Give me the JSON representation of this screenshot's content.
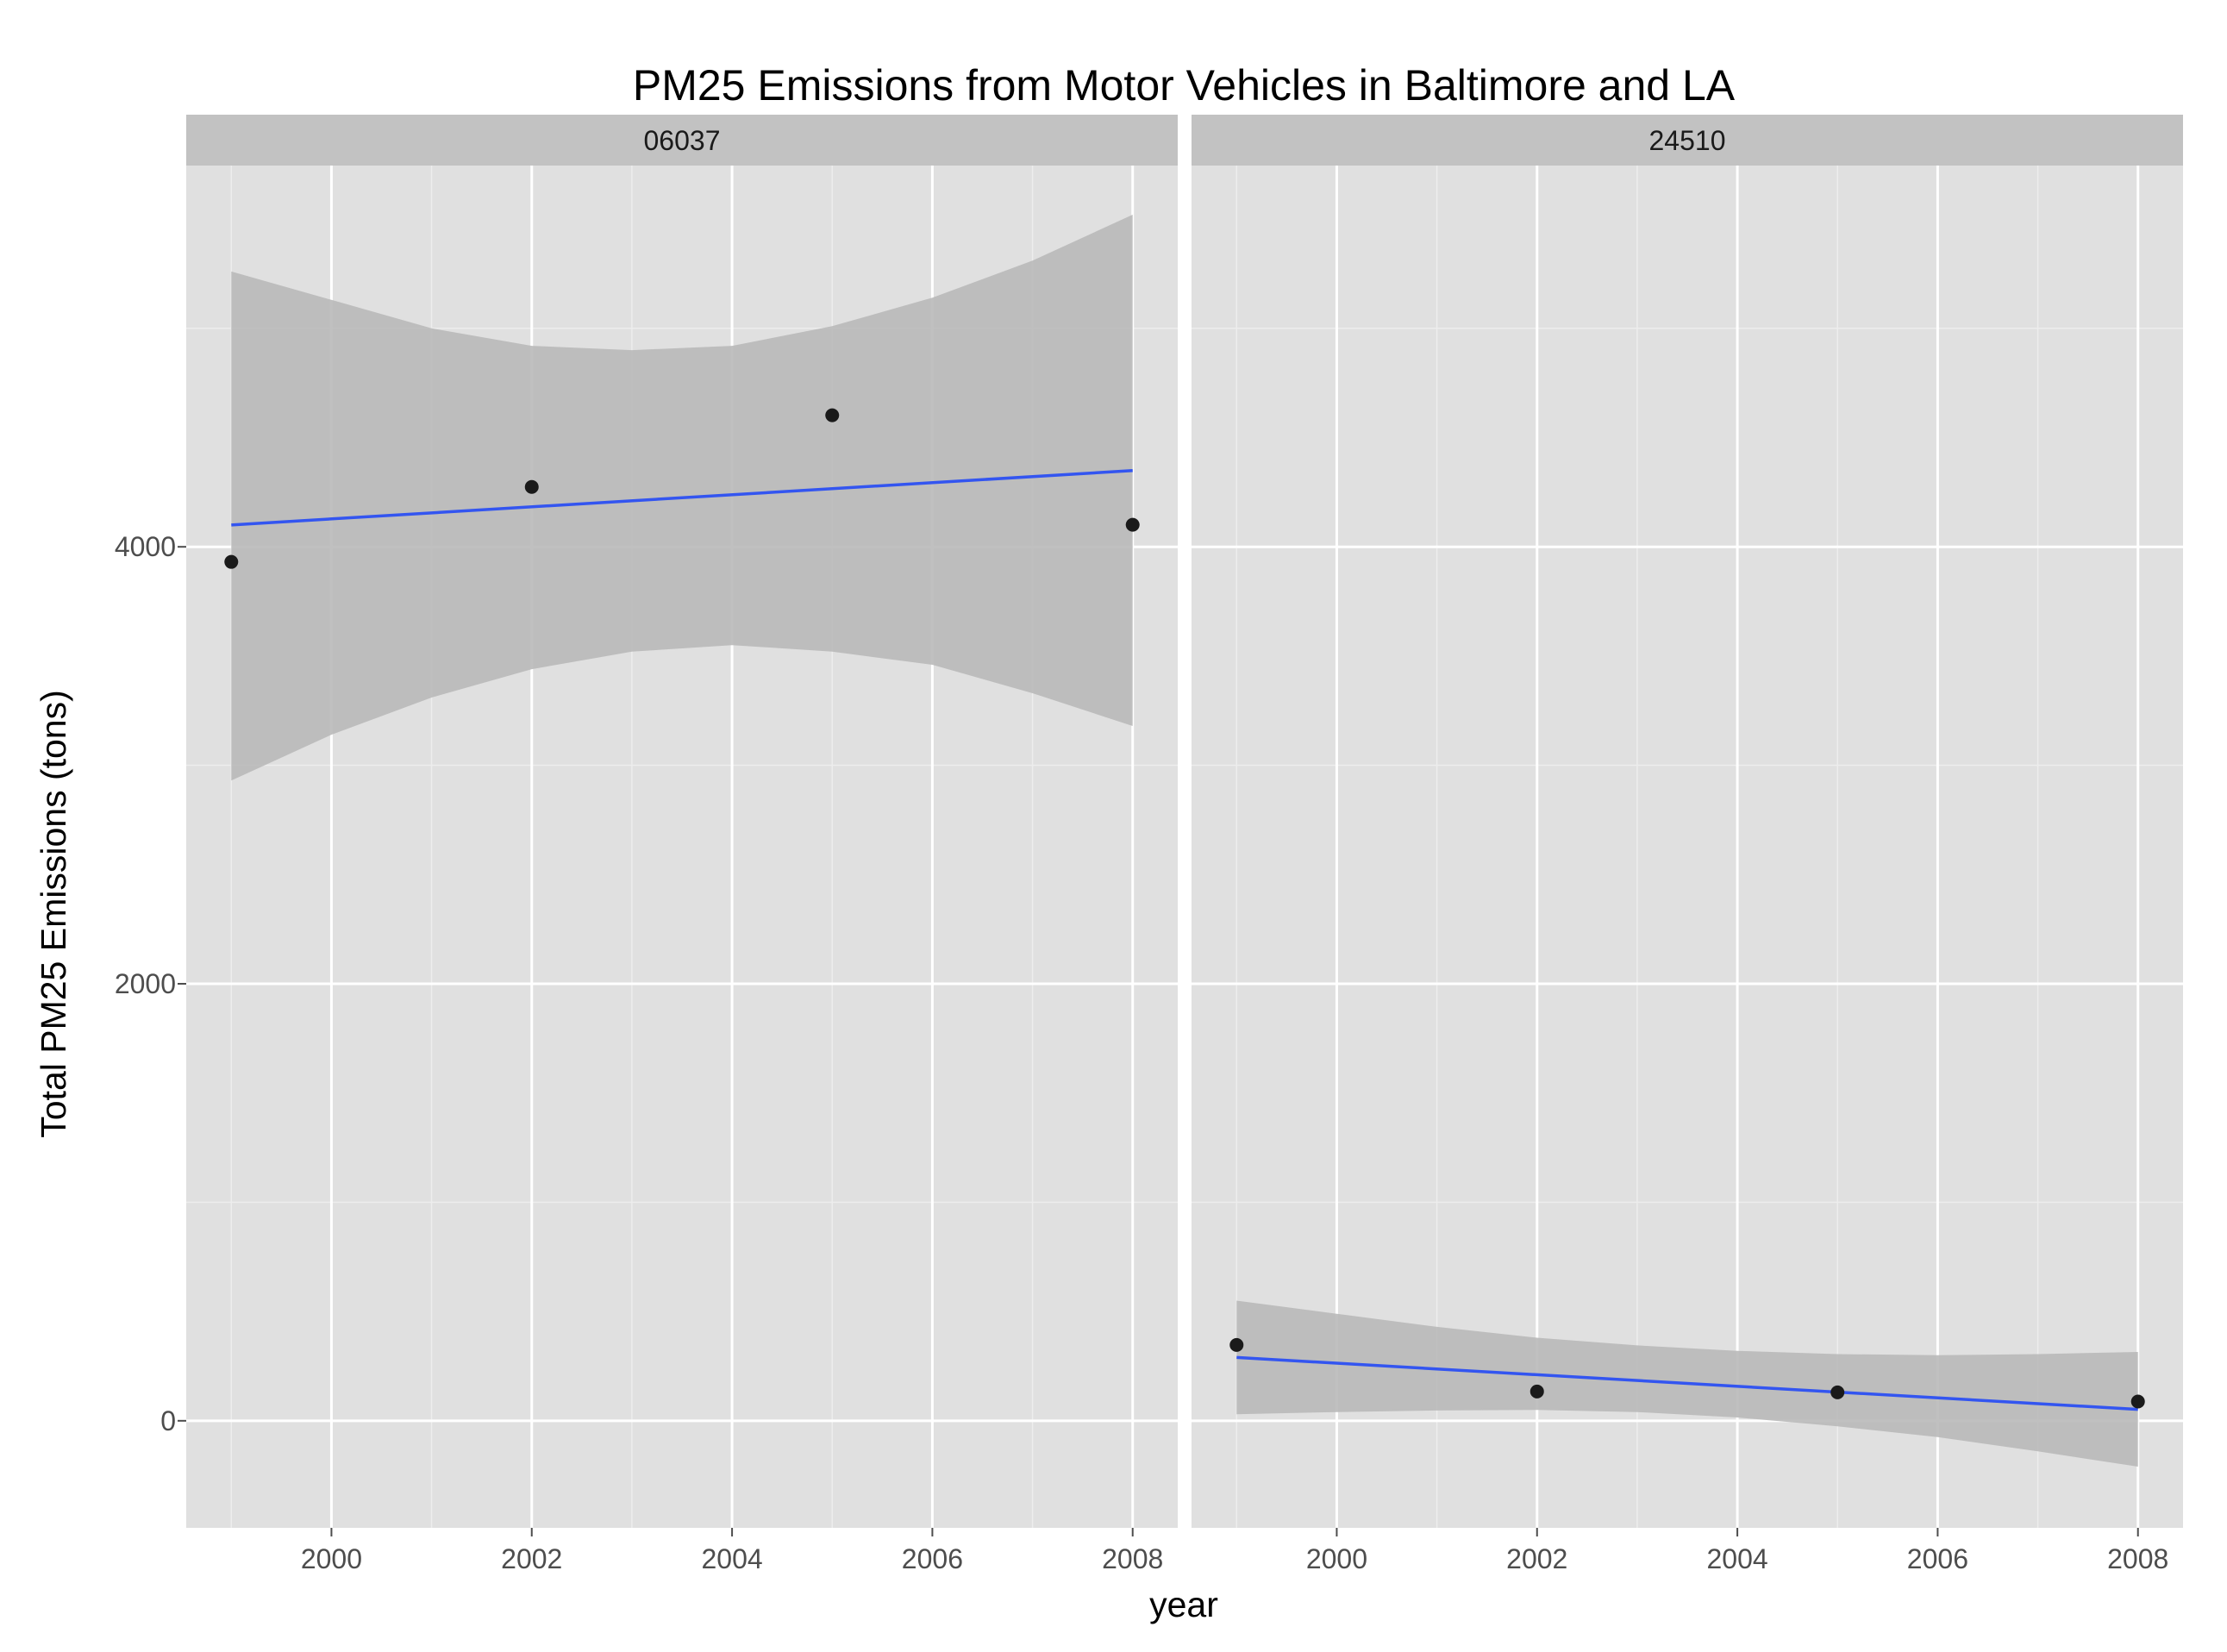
{
  "chart_data": {
    "type": "scatter",
    "title": "PM25 Emissions from Motor Vehicles in Baltimore and LA",
    "xlabel": "year",
    "ylabel": "Total PM25 Emissions (tons)",
    "xlim": [
      1998.55,
      2008.45
    ],
    "ylim": [
      -490,
      5745
    ],
    "x_ticks": [
      2000,
      2002,
      2004,
      2006,
      2008
    ],
    "y_ticks": [
      0,
      2000,
      4000
    ],
    "grid": true,
    "colors": {
      "panel_bg": "#e0e0e0",
      "strip_bg": "#c2c2c2",
      "grid_major": "#ffffff",
      "grid_minor": "#ededed",
      "ribbon": "#b9b9b9",
      "trend_line": "#3355f0",
      "points": "#1a1a1a"
    },
    "panels": [
      {
        "strip_label": "06037",
        "points": [
          {
            "x": 1999,
            "y": 3931
          },
          {
            "x": 2002,
            "y": 4274
          },
          {
            "x": 2005,
            "y": 4602
          },
          {
            "x": 2008,
            "y": 4101
          }
        ],
        "trend": [
          {
            "x": 1999,
            "y": 4100
          },
          {
            "x": 2008,
            "y": 4349
          }
        ],
        "ribbon": [
          {
            "x": 1999,
            "lo": 2930,
            "hi": 5260
          },
          {
            "x": 2000,
            "lo": 3140,
            "hi": 5130
          },
          {
            "x": 2001,
            "lo": 3310,
            "hi": 5000
          },
          {
            "x": 2002,
            "lo": 3440,
            "hi": 4920
          },
          {
            "x": 2003,
            "lo": 3520,
            "hi": 4900
          },
          {
            "x": 2004,
            "lo": 3550,
            "hi": 4920
          },
          {
            "x": 2005,
            "lo": 3520,
            "hi": 5010
          },
          {
            "x": 2006,
            "lo": 3460,
            "hi": 5140
          },
          {
            "x": 2007,
            "lo": 3330,
            "hi": 5310
          },
          {
            "x": 2008,
            "lo": 3180,
            "hi": 5520
          }
        ]
      },
      {
        "strip_label": "24510",
        "points": [
          {
            "x": 1999,
            "y": 347
          },
          {
            "x": 2002,
            "y": 134
          },
          {
            "x": 2005,
            "y": 130
          },
          {
            "x": 2008,
            "y": 88
          }
        ],
        "trend": [
          {
            "x": 1999,
            "y": 290
          },
          {
            "x": 2008,
            "y": 52
          }
        ],
        "ribbon": [
          {
            "x": 1999,
            "lo": 30,
            "hi": 550
          },
          {
            "x": 2000,
            "lo": 40,
            "hi": 490
          },
          {
            "x": 2001,
            "lo": 47,
            "hi": 430
          },
          {
            "x": 2002,
            "lo": 50,
            "hi": 380
          },
          {
            "x": 2003,
            "lo": 40,
            "hi": 345
          },
          {
            "x": 2004,
            "lo": 15,
            "hi": 320
          },
          {
            "x": 2005,
            "lo": -25,
            "hi": 305
          },
          {
            "x": 2006,
            "lo": -75,
            "hi": 300
          },
          {
            "x": 2007,
            "lo": -140,
            "hi": 305
          },
          {
            "x": 2008,
            "lo": -210,
            "hi": 315
          }
        ]
      }
    ]
  }
}
